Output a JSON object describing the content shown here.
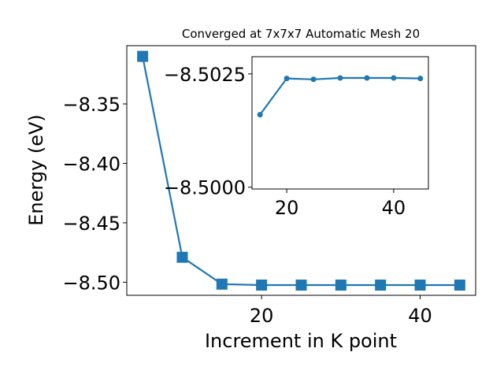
{
  "chart_data": [
    {
      "type": "line",
      "title": "Converged at 7x7x7 Automatic Mesh 20",
      "xlabel": "Increment in K point",
      "ylabel": "Energy (eV)",
      "x": [
        5,
        10,
        15,
        20,
        25,
        30,
        35,
        40,
        45
      ],
      "series": [
        {
          "values": [
            -8.31,
            -8.479,
            -8.5016,
            -8.5024,
            -8.5024,
            -8.5024,
            -8.5024,
            -8.5024,
            -8.5024
          ]
        }
      ],
      "xlim": [
        3.0,
        47.0
      ],
      "ylim": [
        -8.511,
        -8.301
      ],
      "xticks": [
        20,
        40
      ],
      "xtick_labels": [
        "20",
        "40"
      ],
      "yticks": [
        -8.35,
        -8.4,
        -8.45,
        -8.5
      ],
      "ytick_labels": [
        "−8.35",
        "−8.40",
        "−8.45",
        "−8.50"
      ],
      "marker": "square",
      "color": "#1f77b4",
      "grid": false
    },
    {
      "type": "line",
      "title": "",
      "xlabel": "",
      "ylabel": "",
      "x": [
        15,
        20,
        25,
        30,
        35,
        40,
        45
      ],
      "series": [
        {
          "values": [
            -8.5016,
            -8.5024,
            -8.50238,
            -8.50241,
            -8.50241,
            -8.50241,
            -8.5024
          ]
        }
      ],
      "xlim": [
        13.5,
        46.5
      ],
      "ylim": [
        -8.49996,
        -8.50288
      ],
      "y_inverted": true,
      "xticks": [
        20,
        40
      ],
      "xtick_labels": [
        "20",
        "40"
      ],
      "yticks": [
        -8.5025,
        -8.5
      ],
      "ytick_labels": [
        "−8.5025",
        "−8.5000"
      ],
      "marker": "circle",
      "color": "#1f77b4",
      "grid": false
    }
  ]
}
